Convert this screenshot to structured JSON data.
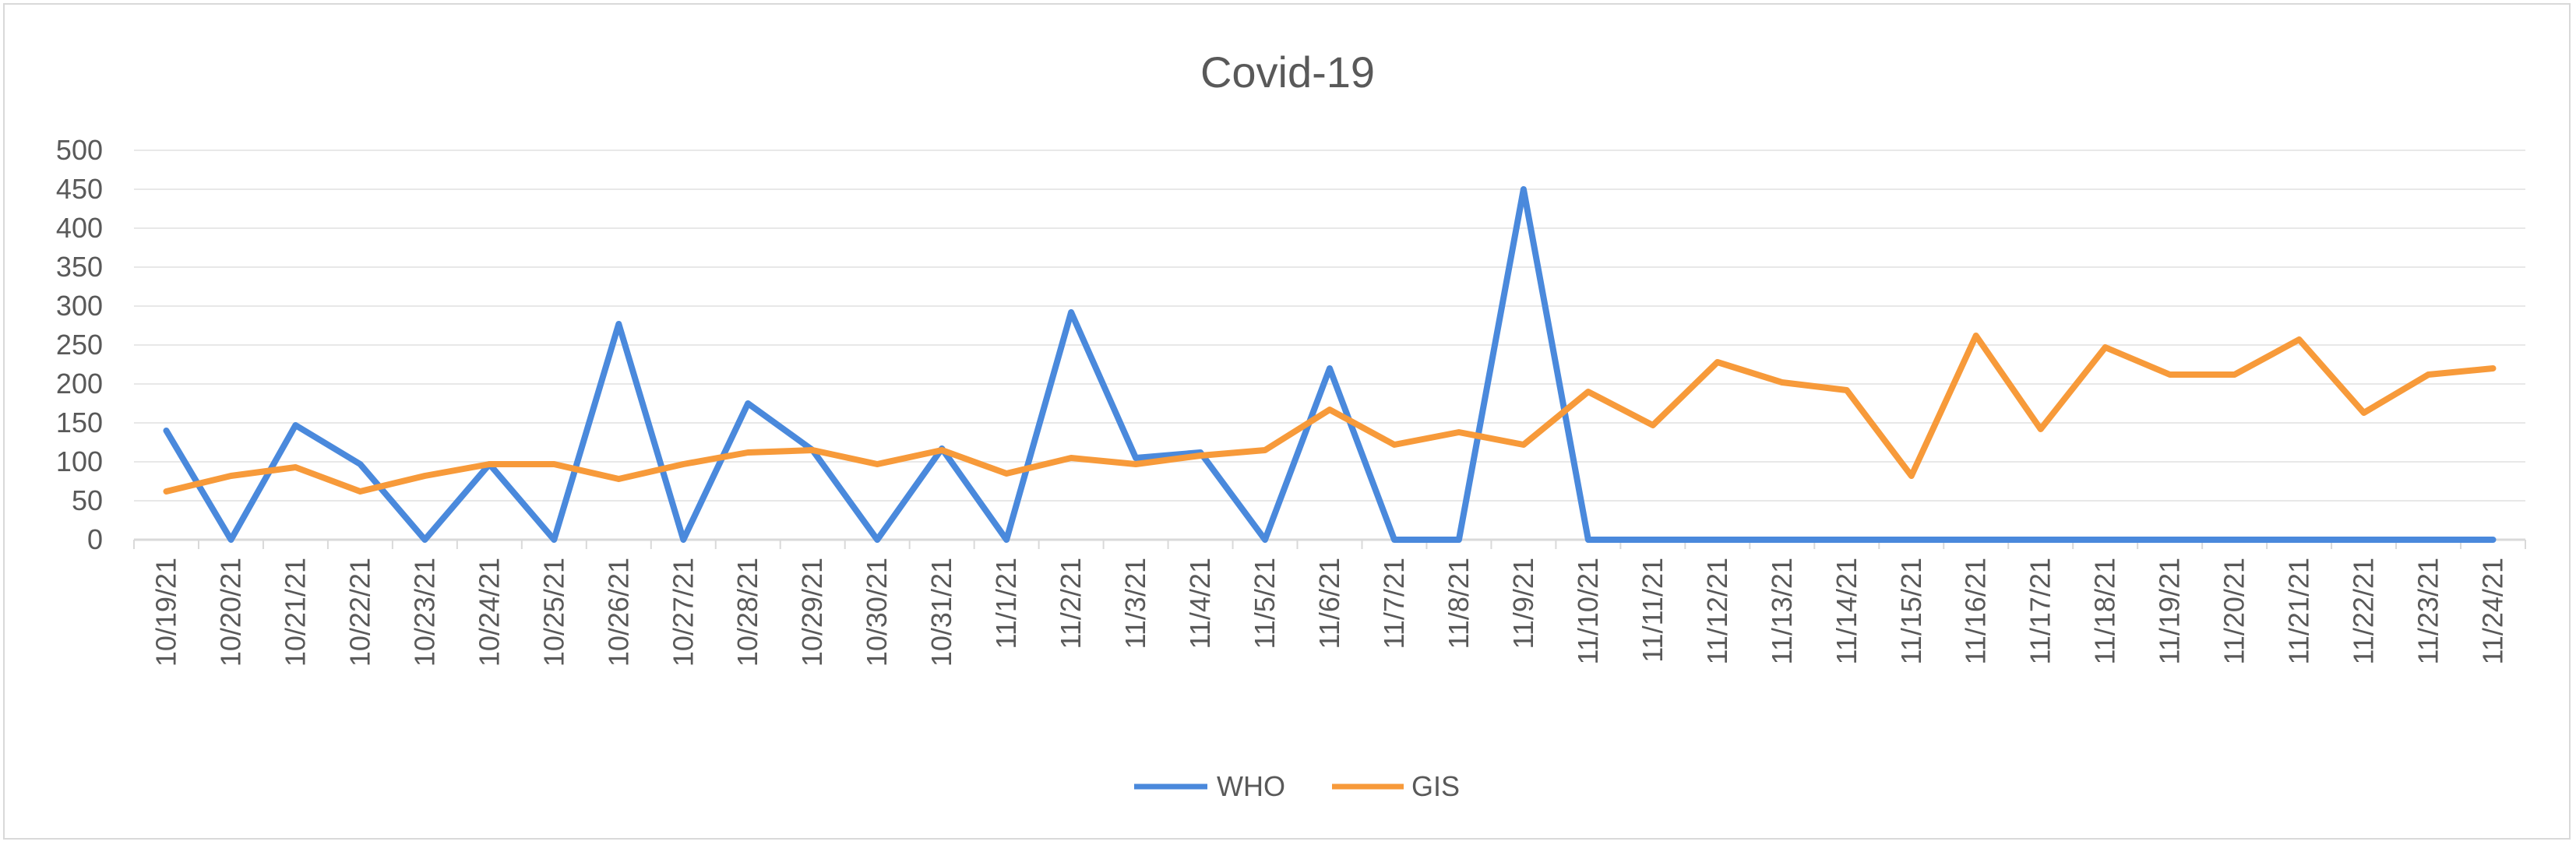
{
  "chart_data": {
    "type": "line",
    "title": "Covid-19",
    "xlabel": "",
    "ylabel": "",
    "ylim": [
      0,
      500
    ],
    "yticks": [
      "0",
      "50",
      "100",
      "150",
      "200",
      "250",
      "300",
      "350",
      "400",
      "450",
      "500"
    ],
    "grid": true,
    "legend_position": "bottom",
    "categories": [
      "10/19/21",
      "10/20/21",
      "10/21/21",
      "10/22/21",
      "10/23/21",
      "10/24/21",
      "10/25/21",
      "10/26/21",
      "10/27/21",
      "10/28/21",
      "10/29/21",
      "10/30/21",
      "10/31/21",
      "11/1/21",
      "11/2/21",
      "11/3/21",
      "11/4/21",
      "11/5/21",
      "11/6/21",
      "11/7/21",
      "11/8/21",
      "11/9/21",
      "11/10/21",
      "11/11/21",
      "11/12/21",
      "11/13/21",
      "11/14/21",
      "11/15/21",
      "11/16/21",
      "11/17/21",
      "11/18/21",
      "11/19/21",
      "11/20/21",
      "11/21/21",
      "11/22/21",
      "11/23/21",
      "11/24/21"
    ],
    "series": [
      {
        "name": "WHO",
        "color": "#4a89dc",
        "values": [
          140,
          0,
          147,
          97,
          0,
          97,
          0,
          277,
          0,
          175,
          115,
          0,
          117,
          0,
          292,
          105,
          112,
          0,
          220,
          0,
          0,
          450,
          0,
          0,
          0,
          0,
          0,
          0,
          0,
          0,
          0,
          0,
          0,
          0,
          0,
          0,
          0
        ]
      },
      {
        "name": "GIS",
        "color": "#f79a3a",
        "values": [
          62,
          82,
          93,
          62,
          82,
          97,
          97,
          78,
          97,
          112,
          115,
          97,
          115,
          85,
          105,
          97,
          108,
          115,
          167,
          122,
          138,
          122,
          190,
          147,
          228,
          202,
          192,
          82,
          262,
          142,
          247,
          212,
          212,
          257,
          163,
          212,
          220
        ]
      }
    ]
  }
}
